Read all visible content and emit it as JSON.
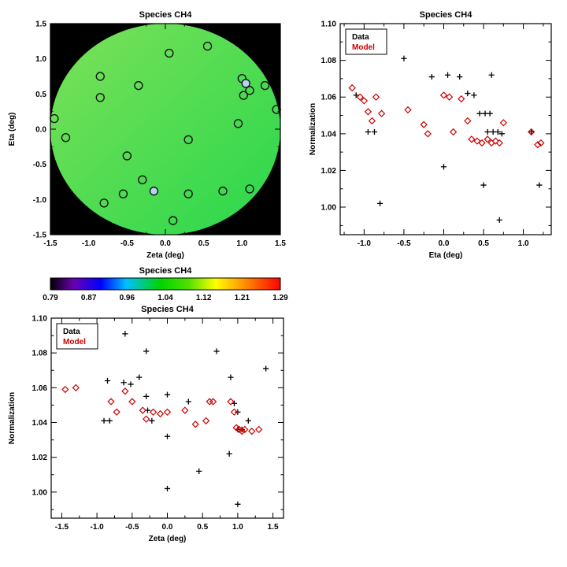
{
  "chart_data": [
    {
      "type": "scatter",
      "role": "spatial-map",
      "title": "Species CH4",
      "xlabel": "Zeta (deg)",
      "ylabel": "Eta (deg)",
      "xlim": [
        -1.5,
        1.5
      ],
      "ylim": [
        -1.5,
        1.5
      ],
      "xticks": [
        -1.5,
        -1.0,
        -0.5,
        0.0,
        0.5,
        1.0,
        1.5
      ],
      "xtick_labels": [
        "-1.5",
        "-1.0",
        "-0.5",
        "0.0",
        "0.5",
        "1.0",
        "1.5"
      ],
      "yticks": [
        -1.5,
        -1.0,
        -0.5,
        0.0,
        0.5,
        1.0,
        1.5
      ],
      "ytick_labels": [
        "-1.5",
        "-1.0",
        "-0.5",
        "0.0",
        "0.5",
        "1.0",
        "1.5"
      ],
      "background": "#000000",
      "disk": {
        "radius": 1.5,
        "gradient": [
          "#7ce158",
          "#28d74c"
        ]
      },
      "marker": "circle",
      "marker_stroke": "#161616",
      "points": [
        [
          0.05,
          1.08
        ],
        [
          0.55,
          1.18
        ],
        [
          -0.85,
          0.75
        ],
        [
          -0.35,
          0.62
        ],
        [
          -0.85,
          0.45
        ],
        [
          1.0,
          0.72
        ],
        [
          1.05,
          0.65,
          "#b4d4f2"
        ],
        [
          1.1,
          0.55
        ],
        [
          1.02,
          0.48
        ],
        [
          1.3,
          0.62
        ],
        [
          1.45,
          0.28
        ],
        [
          -1.45,
          0.15
        ],
        [
          -1.3,
          -0.12
        ],
        [
          0.3,
          -0.15
        ],
        [
          0.95,
          0.08
        ],
        [
          -0.5,
          -0.38
        ],
        [
          -0.3,
          -0.72
        ],
        [
          -0.55,
          -0.92
        ],
        [
          -0.8,
          -1.05
        ],
        [
          -0.15,
          -0.88,
          "#b4d4f2"
        ],
        [
          0.3,
          -0.92
        ],
        [
          0.75,
          -0.88
        ],
        [
          1.1,
          -0.85
        ],
        [
          0.1,
          -1.3
        ]
      ]
    },
    {
      "type": "scatter",
      "title": "Species CH4",
      "xlabel": "Eta (deg)",
      "ylabel": "Normalization",
      "xlim": [
        -1.3,
        1.35
      ],
      "ylim": [
        0.985,
        1.1
      ],
      "xticks": [
        -1.0,
        -0.5,
        0.0,
        0.5,
        1.0
      ],
      "xtick_labels": [
        "-1.0",
        "-0.5",
        "0.0",
        "0.5",
        "1.0"
      ],
      "yticks": [
        1.0,
        1.02,
        1.04,
        1.06,
        1.08,
        1.1
      ],
      "ytick_labels": [
        "1.00",
        "1.02",
        "1.04",
        "1.06",
        "1.08",
        "1.10"
      ],
      "legend": {
        "entries": [
          {
            "label": "Data",
            "color": "#000000"
          },
          {
            "label": "Model",
            "color": "#cc0000"
          }
        ]
      },
      "series": [
        {
          "name": "Data",
          "marker": "plus",
          "color": "#000000",
          "points": [
            [
              -1.1,
              1.061
            ],
            [
              -0.95,
              1.041
            ],
            [
              -0.87,
              1.041
            ],
            [
              -0.85,
              1.091
            ],
            [
              -0.8,
              1.002
            ],
            [
              -0.5,
              1.081
            ],
            [
              -0.15,
              1.071
            ],
            [
              0.05,
              1.072
            ],
            [
              0.2,
              1.071
            ],
            [
              0.0,
              1.022
            ],
            [
              0.3,
              1.062
            ],
            [
              0.38,
              1.061
            ],
            [
              0.45,
              1.051
            ],
            [
              0.52,
              1.051
            ],
            [
              0.58,
              1.051
            ],
            [
              0.5,
              1.012
            ],
            [
              0.55,
              1.041
            ],
            [
              0.62,
              1.041
            ],
            [
              0.68,
              1.041
            ],
            [
              0.73,
              1.04
            ],
            [
              0.7,
              0.993
            ],
            [
              0.6,
              1.072
            ],
            [
              1.1,
              1.041
            ],
            [
              1.2,
              1.012
            ]
          ]
        },
        {
          "name": "Model",
          "marker": "diamond",
          "color": "#cc0000",
          "points": [
            [
              -1.15,
              1.065
            ],
            [
              -1.05,
              1.06
            ],
            [
              -1.0,
              1.058
            ],
            [
              -0.95,
              1.052
            ],
            [
              -0.9,
              1.047
            ],
            [
              -0.85,
              1.06
            ],
            [
              -0.78,
              1.051
            ],
            [
              -0.45,
              1.053
            ],
            [
              -0.25,
              1.045
            ],
            [
              -0.2,
              1.04
            ],
            [
              0.0,
              1.061
            ],
            [
              0.07,
              1.06
            ],
            [
              0.12,
              1.041
            ],
            [
              0.22,
              1.059
            ],
            [
              0.3,
              1.047
            ],
            [
              0.35,
              1.037
            ],
            [
              0.42,
              1.036
            ],
            [
              0.48,
              1.035
            ],
            [
              0.55,
              1.037
            ],
            [
              0.6,
              1.035
            ],
            [
              0.65,
              1.036
            ],
            [
              0.7,
              1.035
            ],
            [
              0.75,
              1.046
            ],
            [
              1.1,
              1.041
            ],
            [
              1.18,
              1.034
            ],
            [
              1.22,
              1.035
            ]
          ]
        }
      ]
    },
    {
      "type": "colorbar",
      "title": "Species CH4",
      "tick_labels": [
        "0.79",
        "0.87",
        "0.96",
        "1.04",
        "1.12",
        "1.21",
        "1.29"
      ],
      "stops": [
        {
          "offset": 0.0,
          "color": "#000000"
        },
        {
          "offset": 0.1,
          "color": "#6a00b0"
        },
        {
          "offset": 0.22,
          "color": "#0000ff"
        },
        {
          "offset": 0.33,
          "color": "#00bfff"
        },
        {
          "offset": 0.48,
          "color": "#00d400"
        },
        {
          "offset": 0.6,
          "color": "#50e000"
        },
        {
          "offset": 0.72,
          "color": "#ffff00"
        },
        {
          "offset": 0.86,
          "color": "#ff8000"
        },
        {
          "offset": 1.0,
          "color": "#ff0000"
        }
      ]
    },
    {
      "type": "scatter",
      "title": "Species CH4",
      "xlabel": "Zeta (deg)",
      "ylabel": "Normalization",
      "xlim": [
        -1.65,
        1.65
      ],
      "ylim": [
        0.985,
        1.1
      ],
      "xticks": [
        -1.5,
        -1.0,
        -0.5,
        0.0,
        0.5,
        1.0,
        1.5
      ],
      "xtick_labels": [
        "-1.5",
        "-1.0",
        "-0.5",
        "0.0",
        "0.5",
        "1.0",
        "1.5"
      ],
      "yticks": [
        1.0,
        1.02,
        1.04,
        1.06,
        1.08,
        1.1
      ],
      "ytick_labels": [
        "1.00",
        "1.02",
        "1.04",
        "1.06",
        "1.08",
        "1.10"
      ],
      "legend": {
        "entries": [
          {
            "label": "Data",
            "color": "#000000"
          },
          {
            "label": "Model",
            "color": "#cc0000"
          }
        ]
      },
      "series": [
        {
          "name": "Data",
          "marker": "plus",
          "color": "#000000",
          "points": [
            [
              -0.9,
              1.041
            ],
            [
              -0.82,
              1.041
            ],
            [
              -0.85,
              1.064
            ],
            [
              -0.6,
              1.091
            ],
            [
              -0.62,
              1.063
            ],
            [
              -0.52,
              1.062
            ],
            [
              -0.4,
              1.066
            ],
            [
              -0.3,
              1.081
            ],
            [
              -0.3,
              1.055
            ],
            [
              -0.28,
              1.047
            ],
            [
              -0.22,
              1.041
            ],
            [
              0.0,
              1.056
            ],
            [
              0.0,
              1.032
            ],
            [
              0.0,
              1.002
            ],
            [
              0.3,
              1.052
            ],
            [
              0.45,
              1.012
            ],
            [
              0.7,
              1.081
            ],
            [
              0.9,
              1.066
            ],
            [
              0.95,
              1.051
            ],
            [
              0.88,
              1.022
            ],
            [
              1.0,
              1.046
            ],
            [
              1.0,
              1.036
            ],
            [
              1.06,
              1.036
            ],
            [
              1.0,
              0.993
            ],
            [
              1.4,
              1.071
            ],
            [
              1.15,
              1.041
            ]
          ]
        },
        {
          "name": "Model",
          "marker": "diamond",
          "color": "#cc0000",
          "points": [
            [
              -1.45,
              1.059
            ],
            [
              -1.3,
              1.06
            ],
            [
              -0.8,
              1.052
            ],
            [
              -0.72,
              1.046
            ],
            [
              -0.6,
              1.058
            ],
            [
              -0.5,
              1.052
            ],
            [
              -0.35,
              1.047
            ],
            [
              -0.3,
              1.042
            ],
            [
              -0.2,
              1.046
            ],
            [
              -0.1,
              1.045
            ],
            [
              0.0,
              1.046
            ],
            [
              0.25,
              1.047
            ],
            [
              0.4,
              1.039
            ],
            [
              0.55,
              1.041
            ],
            [
              0.6,
              1.052
            ],
            [
              0.65,
              1.052
            ],
            [
              0.9,
              1.052
            ],
            [
              0.95,
              1.046
            ],
            [
              0.98,
              1.037
            ],
            [
              1.02,
              1.036
            ],
            [
              1.06,
              1.035
            ],
            [
              1.1,
              1.036
            ],
            [
              1.2,
              1.035
            ],
            [
              1.3,
              1.036
            ]
          ]
        }
      ]
    }
  ]
}
